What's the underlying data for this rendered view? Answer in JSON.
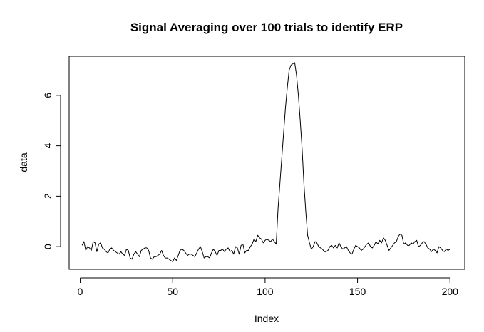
{
  "chart_data": {
    "type": "line",
    "title": "Signal Averaging over 100  trials to identify ERP",
    "xlabel": "Index",
    "ylabel": "data",
    "xlim": [
      -6,
      208
    ],
    "ylim": [
      -0.9,
      7.55
    ],
    "xticks": [
      0,
      50,
      100,
      150,
      200
    ],
    "yticks": [
      0,
      2,
      4,
      6
    ],
    "grid": false,
    "series": [
      {
        "values": [
          0.05,
          0.2,
          -0.15,
          0.0,
          -0.05,
          -0.15,
          0.2,
          0.15,
          -0.2,
          0.1,
          0.15,
          -0.05,
          -0.1,
          -0.2,
          -0.25,
          -0.1,
          -0.05,
          -0.15,
          -0.2,
          -0.25,
          -0.3,
          -0.2,
          -0.3,
          -0.35,
          -0.1,
          -0.15,
          -0.45,
          -0.5,
          -0.3,
          -0.2,
          -0.3,
          -0.4,
          -0.15,
          -0.1,
          -0.05,
          -0.05,
          -0.15,
          -0.45,
          -0.5,
          -0.4,
          -0.4,
          -0.35,
          -0.3,
          -0.15,
          -0.35,
          -0.45,
          -0.45,
          -0.5,
          -0.55,
          -0.6,
          -0.45,
          -0.55,
          -0.35,
          -0.15,
          -0.1,
          -0.15,
          -0.25,
          -0.35,
          -0.3,
          -0.3,
          -0.35,
          -0.4,
          -0.25,
          -0.1,
          0.0,
          -0.2,
          -0.45,
          -0.4,
          -0.4,
          -0.45,
          -0.25,
          -0.1,
          -0.2,
          -0.35,
          -0.15,
          -0.15,
          -0.1,
          -0.2,
          -0.1,
          -0.05,
          -0.2,
          -0.15,
          -0.3,
          0.0,
          -0.05,
          -0.3,
          0.05,
          0.1,
          -0.25,
          -0.15,
          -0.15,
          0.0,
          0.1,
          0.3,
          0.2,
          0.45,
          0.35,
          0.3,
          0.15,
          0.25,
          0.3,
          0.25,
          0.2,
          0.3,
          0.2,
          0.1,
          1.5,
          2.5,
          3.5,
          4.5,
          5.5,
          6.3,
          7.0,
          7.2,
          7.25,
          7.3,
          6.8,
          6.0,
          5.0,
          3.9,
          2.5,
          1.4,
          0.45,
          0.15,
          -0.1,
          0.0,
          0.2,
          0.15,
          0.0,
          -0.05,
          -0.1,
          -0.2,
          -0.2,
          -0.15,
          0.0,
          0.05,
          -0.05,
          0.05,
          -0.05,
          0.15,
          0.0,
          -0.1,
          -0.05,
          0.0,
          -0.15,
          -0.25,
          -0.3,
          -0.1,
          0.05,
          0.0,
          -0.05,
          -0.15,
          -0.1,
          0.0,
          0.1,
          0.15,
          0.0,
          -0.05,
          0.05,
          0.2,
          0.1,
          0.25,
          0.15,
          0.35,
          0.25,
          0.05,
          -0.15,
          -0.05,
          0.05,
          0.15,
          0.2,
          0.4,
          0.5,
          0.45,
          0.1,
          0.15,
          0.05,
          0.05,
          0.15,
          0.1,
          0.2,
          0.25,
          0.0,
          0.05,
          0.15,
          0.2,
          0.1,
          -0.05,
          -0.1,
          -0.2,
          -0.1,
          -0.15,
          -0.25,
          0.0,
          -0.05,
          -0.15,
          -0.2,
          -0.1,
          -0.15,
          -0.1
        ]
      }
    ]
  }
}
